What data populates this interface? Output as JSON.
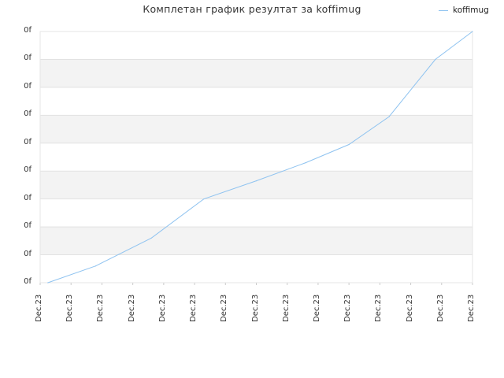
{
  "chart_data": {
    "type": "line",
    "title": "Комплетан график резултат за koffimug",
    "xlabel": "",
    "ylabel": "",
    "legend_position": "top-right",
    "grid": true,
    "y_tick_labels": [
      "0f",
      "0f",
      "0f",
      "0f",
      "0f",
      "0f",
      "0f",
      "0f",
      "0f",
      "0f"
    ],
    "x_tick_labels": [
      "Dec.23",
      "Dec.23",
      "Dec.23",
      "Dec.23",
      "Dec.23",
      "Dec.23",
      "Dec.23",
      "Dec.23",
      "Dec.23",
      "Dec.23",
      "Dec.23",
      "Dec.23",
      "Dec.23",
      "Dec.23",
      "Dec.23"
    ],
    "series": [
      {
        "name": "koffimug",
        "color": "#8fc3f0",
        "x": [
          0.25,
          1.8,
          3.6,
          5.3,
          7.0,
          8.6,
          10.0,
          11.3,
          12.8,
          14.0
        ],
        "y": [
          0,
          0.6,
          1.6,
          3.0,
          3.65,
          4.3,
          4.95,
          5.95,
          8.0,
          9.0
        ]
      }
    ],
    "xlim": [
      0,
      14
    ],
    "ylim": [
      0,
      9
    ]
  }
}
